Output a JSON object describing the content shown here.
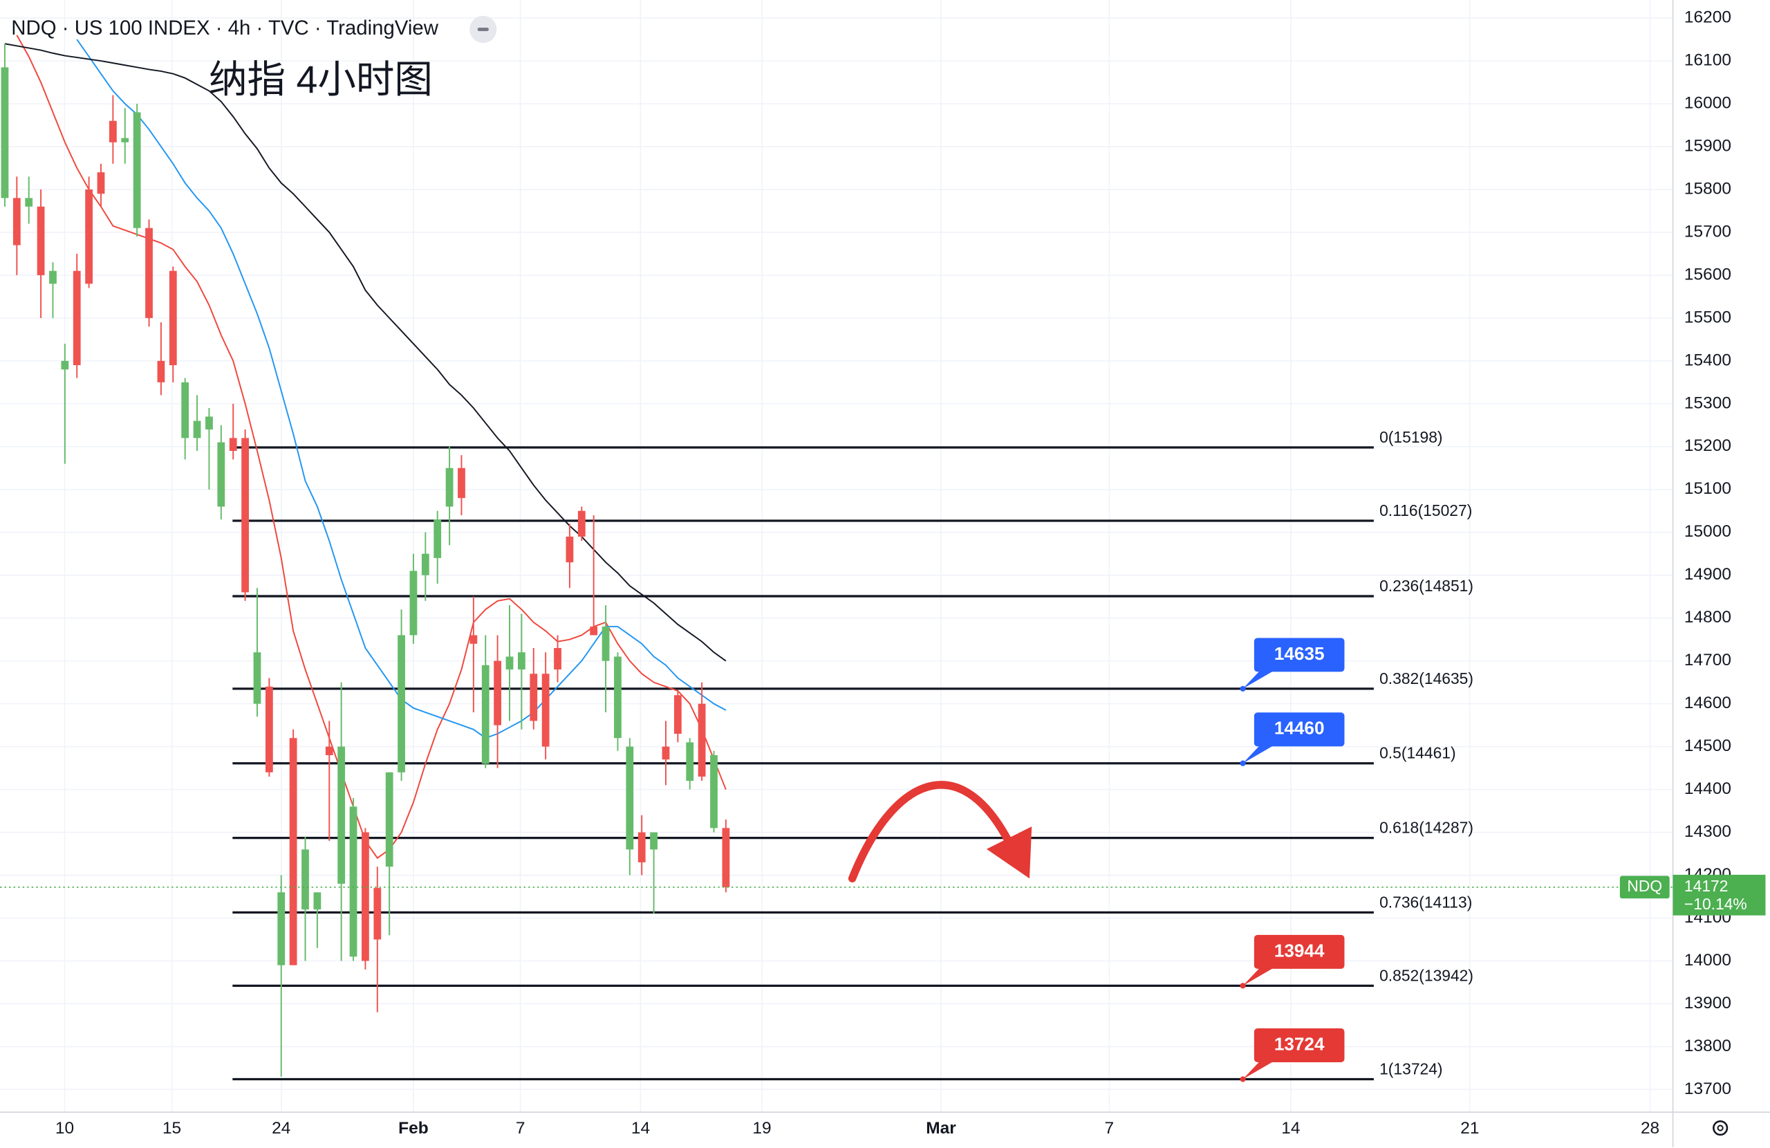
{
  "chart_data": {
    "type": "candlestick",
    "header": "NDQ · US 100 INDEX · 4h · TVC · TradingView",
    "annotation": "纳指 4小时图",
    "up_color": "#66bb6a",
    "down_color": "#ef5350",
    "categories": [
      null,
      null,
      null,
      null,
      null,
      null,
      null,
      null,
      null,
      null,
      null,
      null,
      null,
      null,
      null,
      null,
      null,
      null,
      null,
      null,
      null,
      null,
      null,
      null,
      null,
      null,
      null,
      null,
      null,
      null,
      null,
      null,
      null,
      null,
      null,
      null,
      null,
      null,
      null,
      null,
      null,
      null,
      null,
      null,
      null,
      null,
      null,
      null,
      null,
      null,
      null,
      null,
      null,
      null,
      null,
      null,
      null,
      null,
      null,
      null,
      null
    ],
    "open": [
      15780,
      15780,
      15760,
      15760,
      15580,
      15380,
      15610,
      15800,
      15840,
      15960,
      15910,
      15710,
      15710,
      15400,
      15610,
      15220,
      15220,
      15240,
      15060,
      15220,
      15220,
      14600,
      14640,
      13990,
      14520,
      14120,
      14120,
      14500,
      14180,
      14010,
      14300,
      14170,
      14220,
      14440,
      14760,
      14900,
      14940,
      15060,
      15150,
      14760,
      14460,
      14700,
      14680,
      14680,
      14670,
      14670,
      14730,
      14990,
      15050,
      14780,
      14700,
      14520,
      14260,
      14300,
      14260,
      14500,
      14620,
      14420,
      14600,
      14310,
      14310
    ],
    "high": [
      16140,
      15830,
      15830,
      15800,
      15630,
      15440,
      15650,
      15830,
      15860,
      16020,
      15990,
      16000,
      15730,
      15490,
      15620,
      15360,
      15320,
      15290,
      15250,
      15300,
      15240,
      14870,
      14660,
      14200,
      14540,
      14290,
      14150,
      14560,
      14650,
      14380,
      14310,
      14220,
      14430,
      14820,
      14950,
      15000,
      15050,
      15200,
      15180,
      14850,
      14760,
      14760,
      14830,
      14810,
      14730,
      14720,
      14760,
      15020,
      15060,
      15040,
      14830,
      14720,
      14520,
      14340,
      14290,
      14560,
      14630,
      14520,
      14650,
      14490,
      14330
    ],
    "low": [
      15760,
      15600,
      15720,
      15500,
      15500,
      15160,
      15360,
      15570,
      15760,
      15860,
      15860,
      15690,
      15480,
      15320,
      15350,
      15170,
      15190,
      15100,
      15030,
      15170,
      14840,
      14570,
      14430,
      13730,
      13990,
      14000,
      14030,
      14280,
      14000,
      14000,
      13980,
      13880,
      14060,
      14420,
      14740,
      14840,
      14880,
      14970,
      15040,
      14580,
      14450,
      14450,
      14560,
      14540,
      14540,
      14470,
      14650,
      14870,
      14980,
      14760,
      14580,
      14490,
      14200,
      14200,
      14110,
      14410,
      14510,
      14400,
      14420,
      14300,
      14160
    ],
    "close": [
      16085,
      15670,
      15780,
      15600,
      15610,
      15400,
      15390,
      15580,
      15790,
      15910,
      15920,
      15980,
      15500,
      15350,
      15390,
      15350,
      15260,
      15270,
      15210,
      15190,
      14860,
      14720,
      14440,
      14160,
      13990,
      14260,
      14160,
      14480,
      14500,
      14360,
      14000,
      14050,
      14440,
      14760,
      14910,
      14950,
      15030,
      15150,
      15080,
      14740,
      14690,
      14550,
      14710,
      14720,
      14560,
      14500,
      14680,
      14930,
      14990,
      14760,
      14780,
      14710,
      14500,
      14230,
      14300,
      14470,
      14530,
      14510,
      14430,
      14480,
      14172
    ],
    "lines": [
      {
        "color": "#f0473c",
        "values": [
          null,
          16160,
          16110,
          16050,
          15980,
          15910,
          15850,
          15800,
          15760,
          15715,
          15705,
          15695,
          15685,
          15675,
          15660,
          15620,
          15585,
          15530,
          15460,
          15400,
          15300,
          15190,
          15075,
          14940,
          14770,
          14680,
          14600,
          14520,
          14440,
          14360,
          14280,
          14240,
          14260,
          14300,
          14370,
          14460,
          14540,
          14600,
          14680,
          14790,
          14820,
          14840,
          14845,
          14820,
          14790,
          14770,
          14745,
          14750,
          14760,
          14780,
          14790,
          14740,
          14700,
          14670,
          14650,
          14640,
          14630,
          14600,
          14540,
          14470,
          14400
        ]
      },
      {
        "color": "#2196f3",
        "values": [
          null,
          null,
          null,
          null,
          null,
          null,
          16150,
          16110,
          16070,
          16030,
          16000,
          15975,
          15940,
          15900,
          15860,
          15815,
          15780,
          15750,
          15710,
          15650,
          15580,
          15510,
          15430,
          15330,
          15230,
          15120,
          15060,
          14980,
          14890,
          14810,
          14730,
          14690,
          14650,
          14610,
          14590,
          14580,
          14570,
          14560,
          14550,
          14540,
          14520,
          14530,
          14545,
          14560,
          14580,
          14610,
          14640,
          14670,
          14700,
          14740,
          14780,
          14780,
          14760,
          14740,
          14710,
          14690,
          14660,
          14640,
          14620,
          14600,
          14585
        ]
      },
      {
        "color": "#131722",
        "values": [
          16140,
          16135,
          16130,
          16125,
          16118,
          16112,
          16108,
          16104,
          16100,
          16095,
          16090,
          16085,
          16080,
          16076,
          16070,
          16060,
          16045,
          16030,
          16005,
          15970,
          15930,
          15895,
          15850,
          15815,
          15790,
          15760,
          15730,
          15700,
          15660,
          15620,
          15565,
          15530,
          15500,
          15470,
          15440,
          15410,
          15380,
          15345,
          15320,
          15290,
          15255,
          15220,
          15190,
          15150,
          15110,
          15075,
          15045,
          15015,
          14990,
          14960,
          14930,
          14905,
          14875,
          14855,
          14835,
          14810,
          14785,
          14765,
          14745,
          14720,
          14700
        ]
      }
    ],
    "fib_levels": [
      {
        "label": "0(15198)",
        "value": 15198
      },
      {
        "label": "0.116(15027)",
        "value": 15027
      },
      {
        "label": "0.236(14851)",
        "value": 14851
      },
      {
        "label": "0.382(14635)",
        "value": 14635,
        "callout": "14635",
        "callout_color": "#2962ff"
      },
      {
        "label": "0.5(14461)",
        "value": 14461,
        "callout": "14460",
        "callout_color": "#2962ff"
      },
      {
        "label": "0.618(14287)",
        "value": 14287
      },
      {
        "label": "0.736(14113)",
        "value": 14113
      },
      {
        "label": "0.852(13942)",
        "value": 13942,
        "callout": "13944",
        "callout_color": "#e53935"
      },
      {
        "label": "1(13724)",
        "value": 13724,
        "callout": "13724",
        "callout_color": "#e53935"
      }
    ],
    "last": {
      "symbol": "NDQ",
      "value": 14172,
      "change": "−10.14%",
      "color": "#4caf50"
    },
    "xlim": [
      -0.4,
      138.8
    ],
    "xticks": [
      {
        "value": 4.98,
        "label": "10"
      },
      {
        "value": 13.9,
        "label": "15"
      },
      {
        "value": 23.0,
        "label": "24"
      },
      {
        "value": 34.0,
        "label": "Feb"
      },
      {
        "value": 42.9,
        "label": "7"
      },
      {
        "value": 52.9,
        "label": "14"
      },
      {
        "value": 63.0,
        "label": "19"
      },
      {
        "value": 77.9,
        "label": "Mar"
      },
      {
        "value": 91.9,
        "label": "7"
      },
      {
        "value": 107.0,
        "label": "14"
      },
      {
        "value": 121.9,
        "label": "21"
      },
      {
        "value": 136.9,
        "label": "28"
      }
    ],
    "ylim": [
      13647,
      16242
    ],
    "yticks": [
      13700,
      13800,
      13900,
      14000,
      14100,
      14200,
      14300,
      14400,
      14500,
      14600,
      14700,
      14800,
      14900,
      15000,
      15100,
      15200,
      15300,
      15400,
      15500,
      15600,
      15700,
      15800,
      15900,
      16000,
      16100,
      16200
    ],
    "grid": true
  }
}
